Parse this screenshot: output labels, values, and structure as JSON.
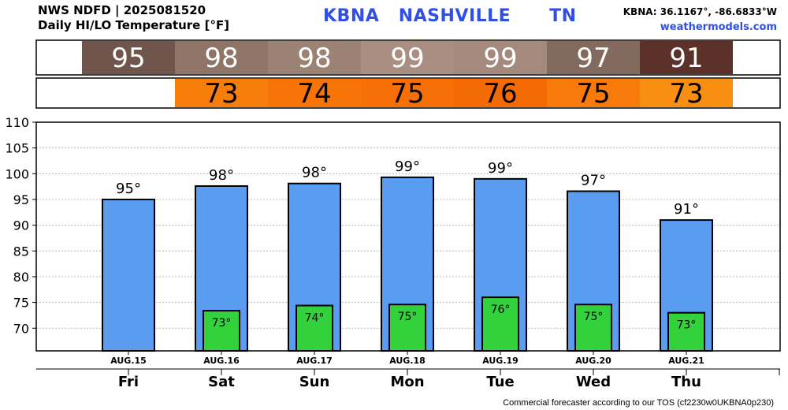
{
  "header": {
    "source": "NWS NDFD | 2025081520",
    "subtitle": "Daily HI/LO Temperature [°F]",
    "station": "KBNA   NASHVILLE      TN",
    "coords": "KBNA: 36.1167°, -86.6833°W",
    "site": "weathermodels.com"
  },
  "footer": "Commercial forecaster according to our TOS (cf2230w0UKBNA0p230)",
  "chart_data": {
    "type": "bar",
    "categories": [
      "AUG.15",
      "AUG.16",
      "AUG.17",
      "AUG.18",
      "AUG.19",
      "AUG.20",
      "AUG.21"
    ],
    "days": [
      "Fri",
      "Sat",
      "Sun",
      "Mon",
      "Tue",
      "Wed",
      "Thu"
    ],
    "series": [
      {
        "values": [
          95,
          97.6,
          98.1,
          99.3,
          99.0,
          96.6,
          91.0
        ],
        "labels": [
          "95°",
          "98°",
          "98°",
          "99°",
          "99°",
          "97°",
          "91°"
        ],
        "color": "#5a9df0"
      },
      {
        "values": [
          null,
          73.4,
          74.4,
          74.6,
          76.0,
          74.6,
          73.0
        ],
        "labels": [
          null,
          "73°",
          "74°",
          "75°",
          "76°",
          "75°",
          "73°"
        ],
        "color": "#33d13c"
      }
    ],
    "hi_strip": {
      "values": [
        "95",
        "98",
        "98",
        "99",
        "99",
        "97",
        "91"
      ],
      "colors": [
        "#6f554b",
        "#8f7567",
        "#9c8275",
        "#a88f82",
        "#a38a7d",
        "#826a5f",
        "#5b3129"
      ]
    },
    "lo_strip": {
      "values": [
        null,
        "73",
        "74",
        "75",
        "76",
        "75",
        "73"
      ],
      "colors": [
        null,
        "#f77e0a",
        "#f77508",
        "#f76f07",
        "#f46b05",
        "#f77a0a",
        "#f88f12"
      ]
    },
    "yticks": [
      70,
      75,
      80,
      85,
      90,
      95,
      100,
      105,
      110
    ],
    "ylim": [
      65.6,
      110
    ],
    "grid": true
  }
}
